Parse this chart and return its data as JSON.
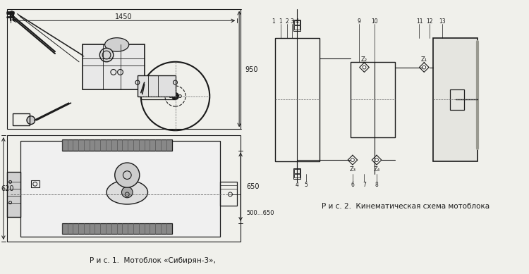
{
  "bg_color": "#f0f0eb",
  "line_color": "#1a1a1a",
  "title1": "Р и с. 1.  Мотоблок «Сибирян-3»,",
  "title2": "Р и с. 2.  Кинематическая схема мотоблока",
  "dim_1450": "1450",
  "dim_950": "950",
  "dim_620": "620",
  "dim_650": "650",
  "dim_500_650": "500...650",
  "fig_width": 7.5,
  "fig_height": 3.89
}
